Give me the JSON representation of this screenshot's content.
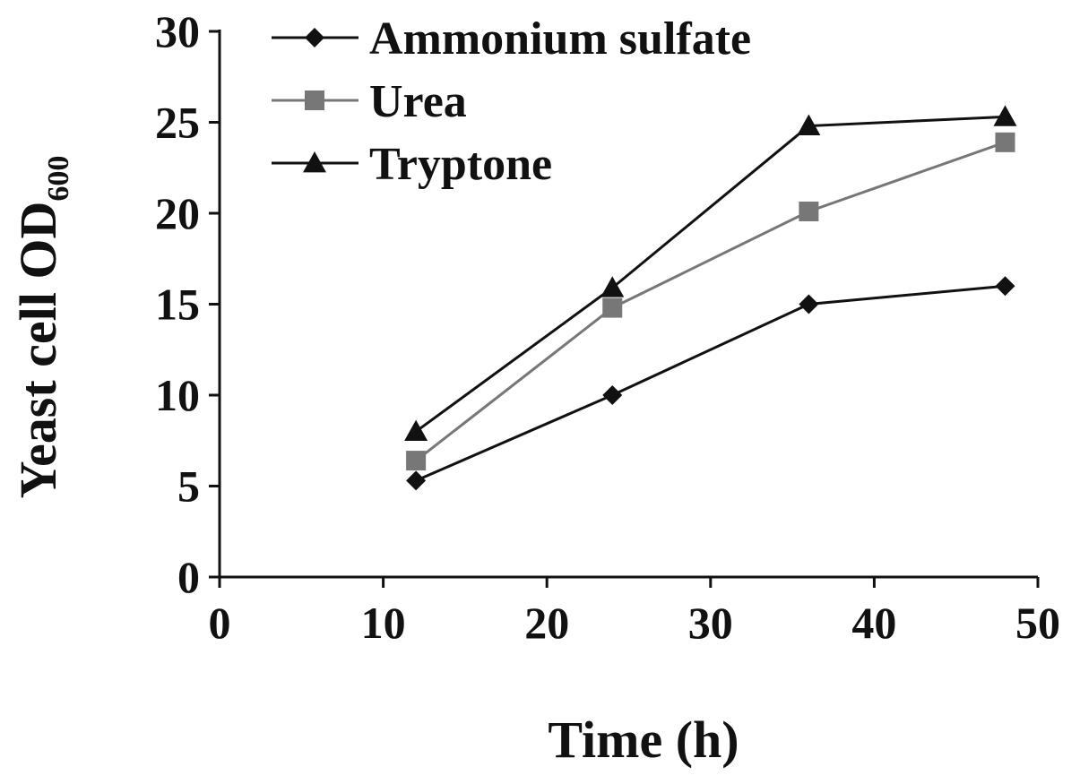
{
  "chart_data": {
    "type": "line",
    "title": "",
    "xlabel": "Time (h)",
    "ylabel": "Yeast cell OD",
    "ylabel_subscript": "600",
    "xlim": [
      0,
      50
    ],
    "ylim": [
      0,
      30
    ],
    "x_ticks": [
      "0",
      "10",
      "20",
      "30",
      "40",
      "50"
    ],
    "y_ticks": [
      "0",
      "5",
      "10",
      "15",
      "20",
      "25",
      "30"
    ],
    "grid": false,
    "legend_position": "top-left",
    "x": [
      12,
      24,
      36,
      48
    ],
    "series": [
      {
        "name": "Ammonium sulfate",
        "values": [
          5.3,
          10.0,
          15.0,
          16.0
        ],
        "color": "#111111",
        "marker": "diamond"
      },
      {
        "name": "Urea",
        "values": [
          6.4,
          14.8,
          20.1,
          23.9
        ],
        "color": "#777777",
        "marker": "square"
      },
      {
        "name": "Tryptone",
        "values": [
          8.0,
          15.9,
          24.8,
          25.3
        ],
        "color": "#111111",
        "marker": "triangle"
      }
    ]
  }
}
